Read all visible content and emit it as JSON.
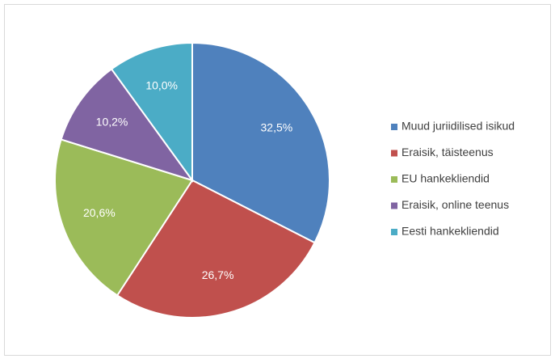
{
  "chart_data": {
    "type": "pie",
    "categories": [
      "Muud juriidilised isikud",
      "Eraisik, täisteenus",
      "EU hankekliendid",
      "Eraisik, online teenus",
      "Eesti hankekliendid"
    ],
    "values": [
      32.5,
      26.7,
      20.6,
      10.2,
      10.0
    ],
    "value_labels": [
      "32,5%",
      "26,7%",
      "20,6%",
      "10,2%",
      "10,0%"
    ],
    "colors": [
      "#4f81bd",
      "#c0504d",
      "#9bbb59",
      "#8064a2",
      "#4bacc6"
    ],
    "legend": "right"
  }
}
